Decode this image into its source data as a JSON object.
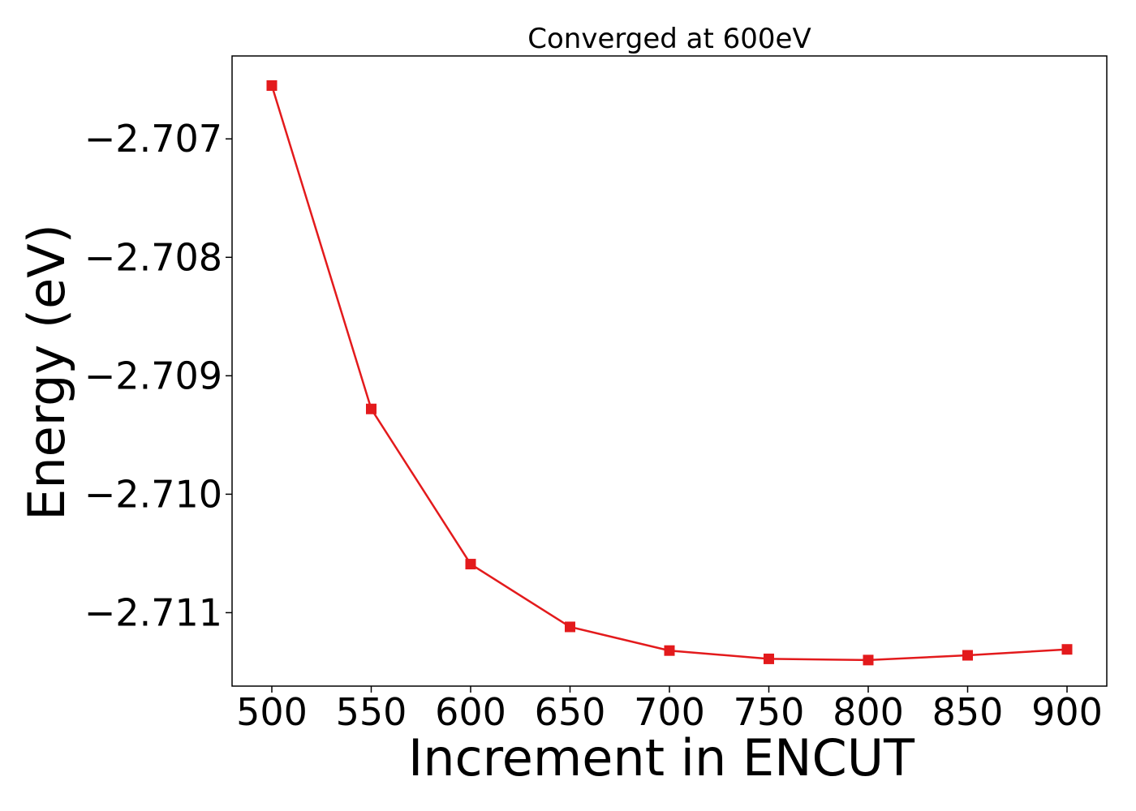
{
  "chart_data": {
    "type": "line",
    "title": "Converged at 600eV",
    "xlabel": "Increment in ENCUT",
    "ylabel": "Energy (eV)",
    "x": [
      500,
      550,
      600,
      650,
      700,
      750,
      800,
      850,
      900
    ],
    "series": [
      {
        "values": [
          -2.70655,
          -2.70928,
          -2.71059,
          -2.71112,
          -2.71132,
          -2.71139,
          -2.7114,
          -2.71136,
          -2.71131
        ],
        "color": "#e31a1c",
        "marker": "square"
      }
    ],
    "xlim": [
      480,
      920
    ],
    "ylim": [
      -2.71162,
      -2.7063
    ],
    "xticks": [
      500,
      550,
      600,
      650,
      700,
      750,
      800,
      850,
      900
    ],
    "xtick_labels": [
      "500",
      "550",
      "600",
      "650",
      "700",
      "750",
      "800",
      "850",
      "900"
    ],
    "yticks": [
      -2.707,
      -2.708,
      -2.709,
      -2.71,
      -2.711
    ],
    "ytick_labels": [
      "−2.707",
      "−2.708",
      "−2.709",
      "−2.710",
      "−2.711"
    ],
    "grid": false,
    "legend": "none"
  }
}
